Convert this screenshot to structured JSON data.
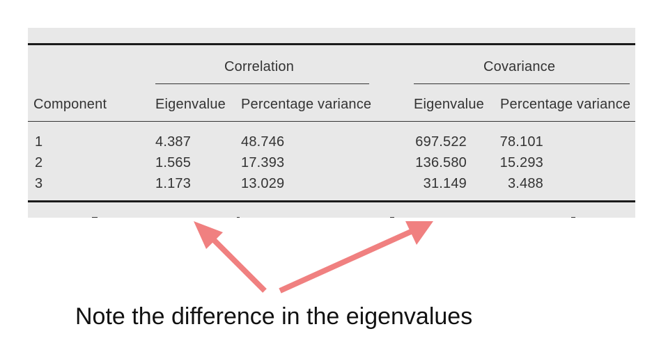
{
  "table": {
    "group_headers": {
      "correlation": "Correlation",
      "covariance": "Covariance"
    },
    "column_headers": {
      "component": "Component",
      "corr_eigenvalue": "Eigenvalue",
      "corr_pct_variance": "Percentage variance",
      "cov_eigenvalue": "Eigenvalue",
      "cov_pct_variance": "Percentage variance"
    },
    "rows": [
      {
        "component": "1",
        "corr_eigenvalue": "4.387",
        "corr_pct": "48.746",
        "cov_eigenvalue": "697.522",
        "cov_pct": "78.101"
      },
      {
        "component": "2",
        "corr_eigenvalue": "1.565",
        "corr_pct": "17.393",
        "cov_eigenvalue": "136.580",
        "cov_pct": "15.293"
      },
      {
        "component": "3",
        "corr_eigenvalue": "1.173",
        "corr_pct": "13.029",
        "cov_eigenvalue": "31.149",
        "cov_pct": "3.488"
      }
    ]
  },
  "annotation": {
    "caption": "Note the difference in the eigenvalues",
    "arrow_color": "#f08080"
  }
}
